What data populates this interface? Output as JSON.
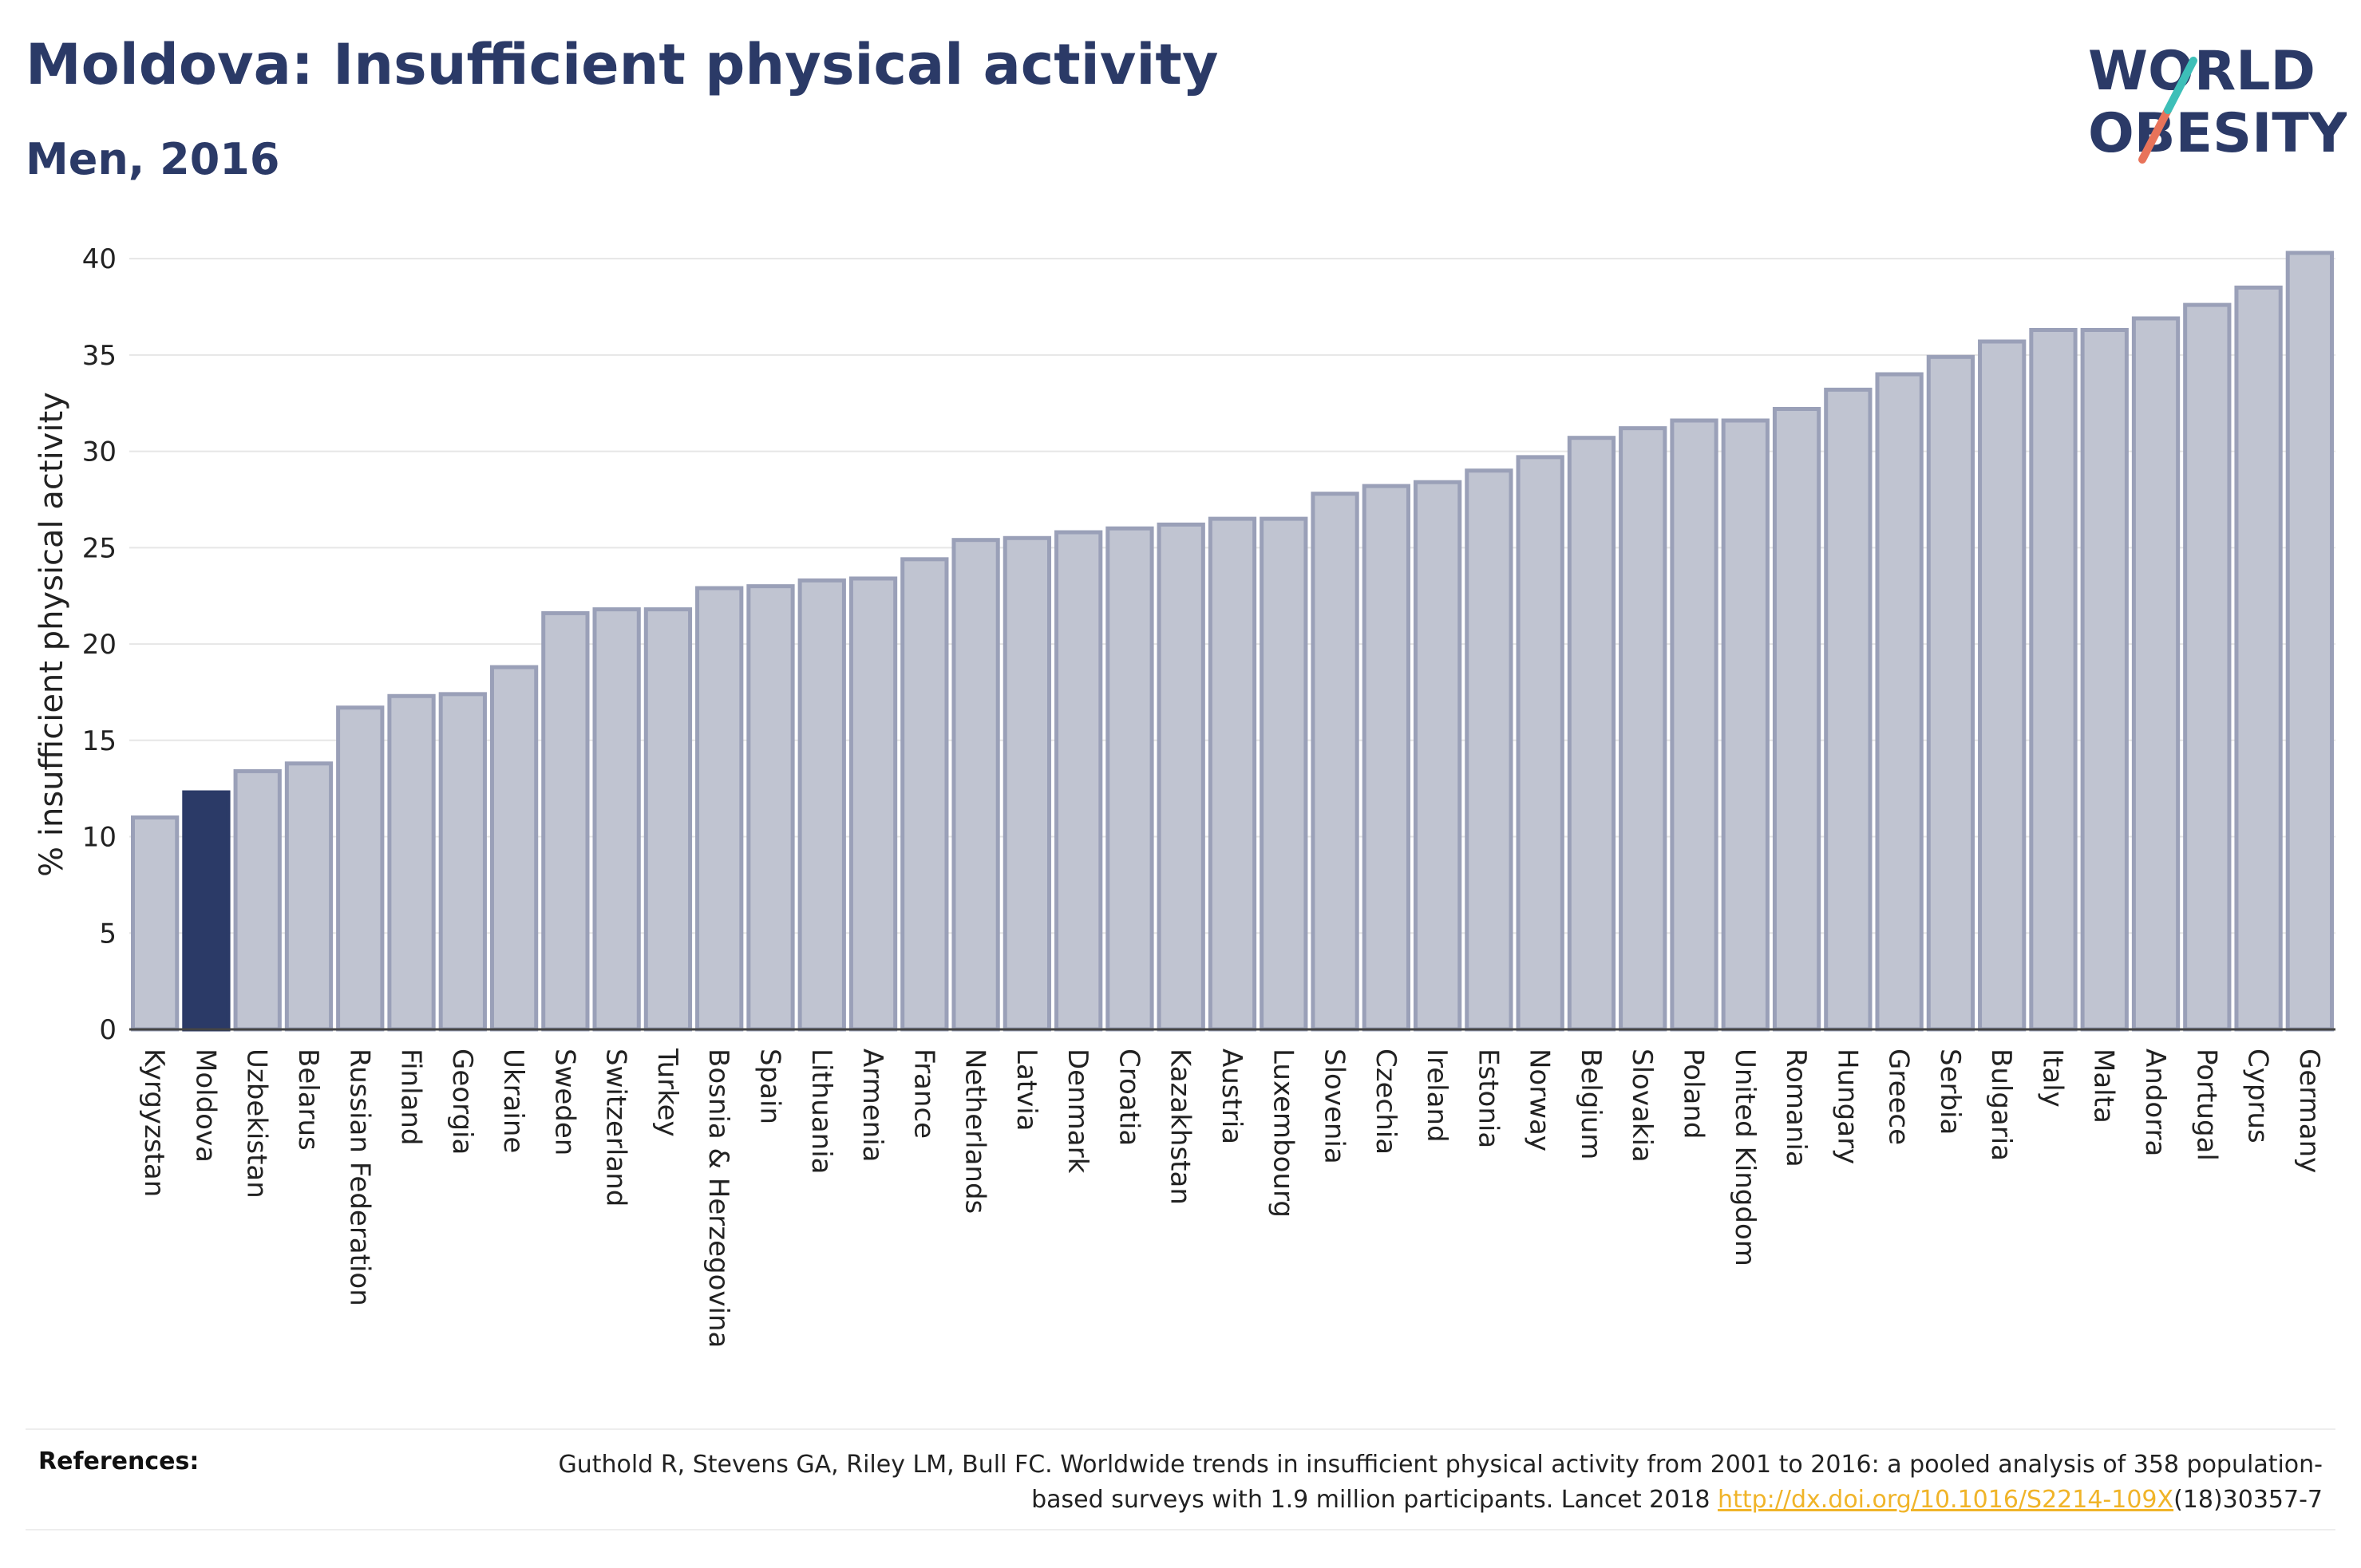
{
  "header": {
    "title": "Moldova: Insufficient physical activity",
    "subtitle": "Men, 2016"
  },
  "logo": {
    "line1": "WORLD",
    "line2": "OBESITY",
    "colors": {
      "text": "#2b3a67",
      "slash_top": "#3dbfb8",
      "slash_bottom": "#e8735a"
    }
  },
  "colors": {
    "highlight": "#2b3a67",
    "bar_fill": "#c0c4d1",
    "bar_stroke": "#9aa0b8",
    "grid": "#e6e6e6"
  },
  "chart_data": {
    "type": "bar",
    "title": "",
    "xlabel": "",
    "ylabel": "% insufficient physical activity",
    "ylim": [
      0,
      41
    ],
    "yticks": [
      0,
      5,
      10,
      15,
      20,
      25,
      30,
      35,
      40
    ],
    "grid": true,
    "highlight": "Moldova",
    "categories": [
      "Kyrgyzstan",
      "Moldova",
      "Uzbekistan",
      "Belarus",
      "Russian Federation",
      "Finland",
      "Georgia",
      "Ukraine",
      "Sweden",
      "Switzerland",
      "Turkey",
      "Bosnia & Herzegovina",
      "Spain",
      "Lithuania",
      "Armenia",
      "France",
      "Netherlands",
      "Latvia",
      "Denmark",
      "Croatia",
      "Kazakhstan",
      "Austria",
      "Luxembourg",
      "Slovenia",
      "Czechia",
      "Ireland",
      "Estonia",
      "Norway",
      "Belgium",
      "Slovakia",
      "Poland",
      "United Kingdom",
      "Romania",
      "Hungary",
      "Greece",
      "Serbia",
      "Bulgaria",
      "Italy",
      "Malta",
      "Andorra",
      "Portugal",
      "Cyprus",
      "Germany"
    ],
    "values": [
      11.0,
      12.3,
      13.4,
      13.8,
      16.7,
      17.3,
      17.4,
      18.8,
      21.6,
      21.8,
      21.8,
      22.9,
      23.0,
      23.3,
      23.4,
      24.4,
      25.4,
      25.5,
      25.8,
      26.0,
      26.2,
      26.5,
      26.5,
      27.8,
      28.2,
      28.4,
      29.0,
      29.7,
      30.7,
      31.2,
      31.6,
      31.6,
      32.2,
      33.2,
      34.0,
      34.9,
      35.7,
      36.3,
      36.3,
      36.9,
      37.6,
      38.5,
      40.3
    ]
  },
  "references": {
    "label": "References:",
    "text_before": "Guthold R, Stevens GA, Riley LM, Bull FC. Worldwide trends in insufficient physical activity from 2001 to 2016: a pooled analysis of 358 population-based surveys with 1.9 million participants. Lancet 2018 ",
    "link": "http://dx.doi.org/10.1016/S2214-109X",
    "text_after": "(18)30357-7"
  }
}
